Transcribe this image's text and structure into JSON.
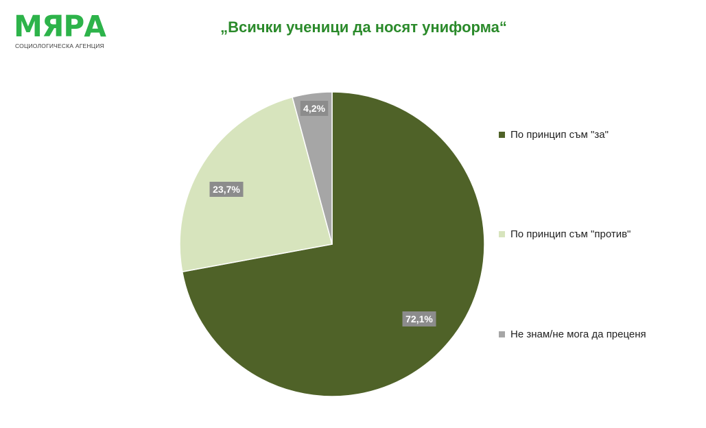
{
  "logo": {
    "name": "МЯРА",
    "subtitle": "СОЦИОЛОГИЧЕСКА АГЕНЦИЯ",
    "color": "#2db34a"
  },
  "chart_data": {
    "type": "pie",
    "title": "„Всички ученици да носят униформа“",
    "start_angle_deg": 0,
    "direction": "clockwise",
    "legend_position": "right",
    "slices": [
      {
        "label": "По принцип съм \"за\"",
        "value": 72.1,
        "data_label": "72,1%",
        "color": "#4f6228"
      },
      {
        "label": "По принцип съм \"против\"",
        "value": 23.7,
        "data_label": "23,7%",
        "color": "#d7e4bd"
      },
      {
        "label": "Не знам/не мога да преценя",
        "value": 4.2,
        "data_label": "4,2%",
        "color": "#a6a6a6"
      }
    ]
  }
}
